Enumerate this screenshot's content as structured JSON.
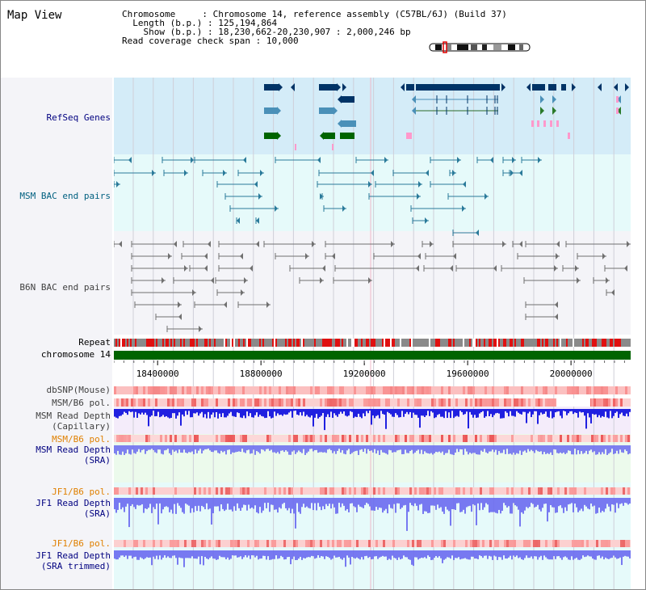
{
  "page": {
    "title": "Map View"
  },
  "info": {
    "chrom_label": "Chromosome",
    "chrom_value": "Chromosome 14, reference assembly (C57BL/6J) (Build 37)",
    "length_label": "Length (b.p.)",
    "length_value": "125,194,864",
    "show_label": "Show (b.p.)",
    "show_value": "18,230,662-20,230,907 : 2,000,246 bp",
    "span_label": "Read coverage check span",
    "span_value": "10,000"
  },
  "tracks": {
    "refseq": "RefSeq Genes",
    "msm_bac": "MSM BAC end pairs",
    "b6n_bac": "B6N BAC end pairs",
    "repeat": "Repeat",
    "chromosome": "chromosome 14",
    "dbsnp": "dbSNP(Mouse)",
    "msm_pol1": "MSM/B6 pol.",
    "msm_depth_cap_1": "MSM Read Depth",
    "msm_depth_cap_2": "(Capillary)",
    "msm_pol2": "MSM/B6 pol.",
    "msm_depth_sra_1": "MSM Read Depth",
    "msm_depth_sra_2": "(SRA)",
    "jf1_pol1": "JF1/B6 pol.",
    "jf1_depth_sra_1": "JF1 Read Depth",
    "jf1_depth_sra_2": "(SRA)",
    "jf1_pol2": "JF1/B6 pol.",
    "jf1_depth_trim_1": "JF1 Read Depth",
    "jf1_depth_trim_2": "(SRA trimmed)"
  },
  "axis": {
    "ticks": [
      {
        "value": 18400000,
        "label": "18400000"
      },
      {
        "value": 18800000,
        "label": "18800000"
      },
      {
        "value": 19200000,
        "label": "19200000"
      },
      {
        "value": 19600000,
        "label": "19600000"
      },
      {
        "value": 20000000,
        "label": "20000000"
      }
    ],
    "start": 18230662,
    "end": 20230907
  },
  "colors": {
    "label_blue": "#000080",
    "label_teal": "#006080",
    "label_gray": "#404040",
    "label_orange": "#e08000",
    "gene_dark": "#003366",
    "gene_mid": "#4a90b8",
    "gene_green": "#006400",
    "gene_pink": "#ff99cc",
    "msm_bac": "#2a7a9a",
    "b6n_bac": "#707070",
    "chrom_green": "#006400",
    "depth_blue": "#2020e0",
    "depth_light": "#6a6af0"
  }
}
